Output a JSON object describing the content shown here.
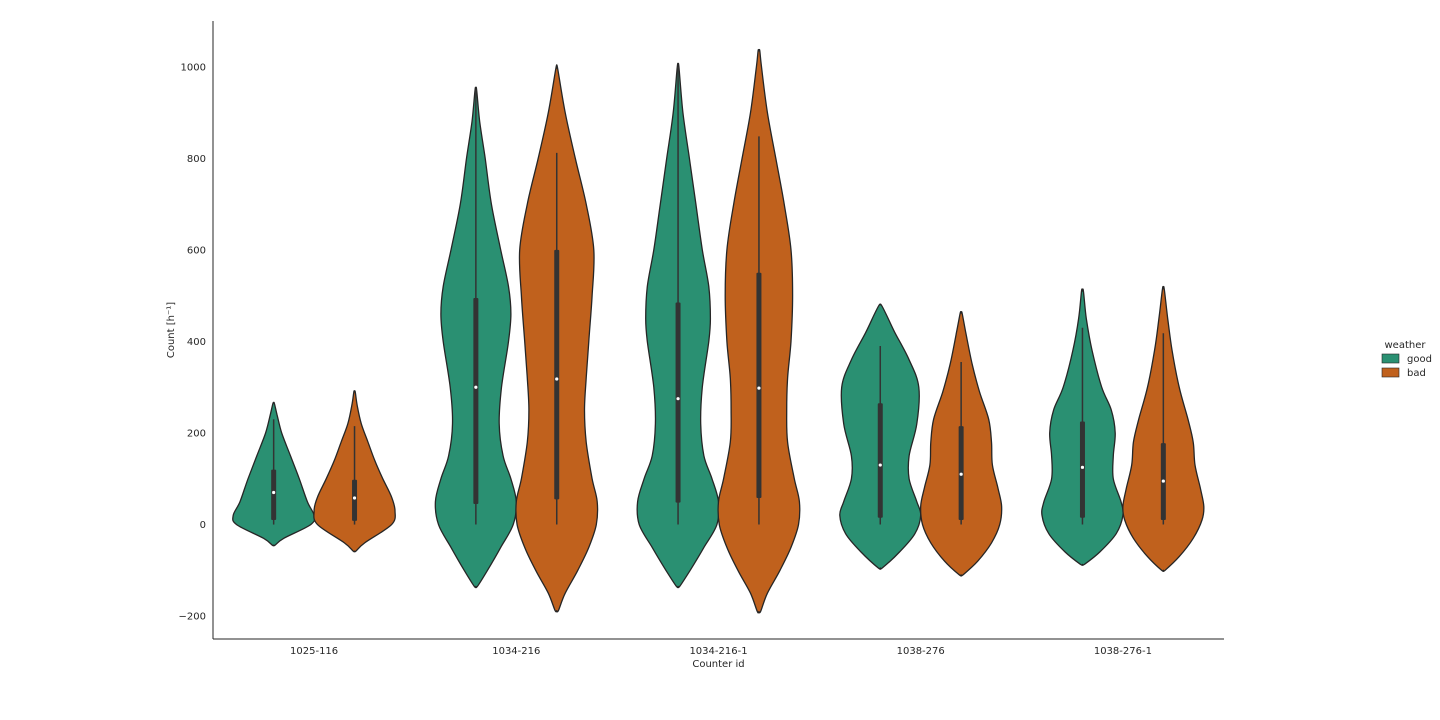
{
  "chart_data": {
    "type": "violin",
    "title": "",
    "xlabel": "Counter id",
    "ylabel": "Count [h⁻¹]",
    "ylim": [
      -250,
      1100
    ],
    "yticks": [
      -200,
      0,
      200,
      400,
      600,
      800,
      1000
    ],
    "categories": [
      "1025-116",
      "1034-216",
      "1034-216-1",
      "1038-276",
      "1038-276-1"
    ],
    "legend": {
      "title": "weather",
      "position": "right",
      "entries": [
        "good",
        "bad"
      ]
    },
    "colors": {
      "good": "#2a9072",
      "bad": "#c0611d",
      "outline": "#262626",
      "box": "#333333"
    },
    "series": [
      {
        "name": "good",
        "violins": [
          {
            "category": "1025-116",
            "min": -45,
            "max": 265,
            "median": 70,
            "q1": 10,
            "q3": 120,
            "whisker_low": 0,
            "whisker_high": 230,
            "max_width": 0.55,
            "profile": [
              [
                -45,
                0.02
              ],
              [
                -30,
                0.15
              ],
              [
                0,
                0.55
              ],
              [
                20,
                0.6
              ],
              [
                50,
                0.5
              ],
              [
                100,
                0.38
              ],
              [
                150,
                0.25
              ],
              [
                200,
                0.12
              ],
              [
                240,
                0.05
              ],
              [
                265,
                0.01
              ]
            ]
          },
          {
            "category": "1034-216",
            "min": -135,
            "max": 950,
            "median": 300,
            "q1": 45,
            "q3": 495,
            "whisker_low": 0,
            "whisker_high": 950,
            "max_width": 0.55,
            "profile": [
              [
                -135,
                0.02
              ],
              [
                -100,
                0.15
              ],
              [
                -50,
                0.32
              ],
              [
                0,
                0.48
              ],
              [
                50,
                0.52
              ],
              [
                100,
                0.45
              ],
              [
                150,
                0.35
              ],
              [
                220,
                0.3
              ],
              [
                300,
                0.33
              ],
              [
                400,
                0.42
              ],
              [
                460,
                0.45
              ],
              [
                520,
                0.42
              ],
              [
                600,
                0.32
              ],
              [
                700,
                0.2
              ],
              [
                800,
                0.12
              ],
              [
                880,
                0.05
              ],
              [
                950,
                0.01
              ]
            ]
          },
          {
            "category": "1034-216-1",
            "min": -135,
            "max": 1000,
            "median": 275,
            "q1": 48,
            "q3": 485,
            "whisker_low": 0,
            "whisker_high": 1000,
            "max_width": 0.55,
            "profile": [
              [
                -135,
                0.02
              ],
              [
                -100,
                0.15
              ],
              [
                -50,
                0.32
              ],
              [
                0,
                0.48
              ],
              [
                50,
                0.5
              ],
              [
                100,
                0.42
              ],
              [
                150,
                0.32
              ],
              [
                220,
                0.28
              ],
              [
                300,
                0.3
              ],
              [
                400,
                0.38
              ],
              [
                450,
                0.4
              ],
              [
                520,
                0.38
              ],
              [
                600,
                0.3
              ],
              [
                700,
                0.22
              ],
              [
                800,
                0.14
              ],
              [
                900,
                0.06
              ],
              [
                1000,
                0.01
              ]
            ]
          },
          {
            "category": "1038-276",
            "min": -95,
            "max": 480,
            "median": 130,
            "q1": 15,
            "q3": 265,
            "whisker_low": 0,
            "whisker_high": 390,
            "max_width": 0.45,
            "profile": [
              [
                -95,
                0.02
              ],
              [
                -60,
                0.2
              ],
              [
                -20,
                0.36
              ],
              [
                20,
                0.42
              ],
              [
                50,
                0.38
              ],
              [
                100,
                0.3
              ],
              [
                150,
                0.3
              ],
              [
                220,
                0.38
              ],
              [
                300,
                0.4
              ],
              [
                360,
                0.3
              ],
              [
                420,
                0.15
              ],
              [
                460,
                0.06
              ],
              [
                480,
                0.01
              ]
            ]
          },
          {
            "category": "1038-276-1",
            "min": -87,
            "max": 510,
            "median": 125,
            "q1": 15,
            "q3": 225,
            "whisker_low": 0,
            "whisker_high": 430,
            "max_width": 0.45,
            "profile": [
              [
                -87,
                0.02
              ],
              [
                -60,
                0.18
              ],
              [
                -20,
                0.35
              ],
              [
                20,
                0.42
              ],
              [
                50,
                0.4
              ],
              [
                100,
                0.32
              ],
              [
                150,
                0.32
              ],
              [
                200,
                0.34
              ],
              [
                250,
                0.3
              ],
              [
                300,
                0.2
              ],
              [
                380,
                0.1
              ],
              [
                450,
                0.04
              ],
              [
                510,
                0.01
              ]
            ]
          }
        ]
      },
      {
        "name": "bad",
        "violins": [
          {
            "category": "1025-116",
            "min": -58,
            "max": 290,
            "median": 58,
            "q1": 8,
            "q3": 98,
            "whisker_low": 0,
            "whisker_high": 215,
            "max_width": 0.55,
            "profile": [
              [
                -58,
                0.02
              ],
              [
                -40,
                0.15
              ],
              [
                0,
                0.55
              ],
              [
                30,
                0.6
              ],
              [
                60,
                0.55
              ],
              [
                100,
                0.42
              ],
              [
                140,
                0.3
              ],
              [
                180,
                0.2
              ],
              [
                220,
                0.1
              ],
              [
                260,
                0.04
              ],
              [
                290,
                0.01
              ]
            ]
          },
          {
            "category": "1034-216",
            "min": -188,
            "max": 997,
            "median": 318,
            "q1": 55,
            "q3": 600,
            "whisker_low": 0,
            "whisker_high": 812,
            "max_width": 0.55,
            "profile": [
              [
                -188,
                0.02
              ],
              [
                -150,
                0.1
              ],
              [
                -100,
                0.25
              ],
              [
                -50,
                0.38
              ],
              [
                0,
                0.47
              ],
              [
                50,
                0.48
              ],
              [
                100,
                0.42
              ],
              [
                180,
                0.35
              ],
              [
                250,
                0.33
              ],
              [
                320,
                0.35
              ],
              [
                400,
                0.38
              ],
              [
                500,
                0.42
              ],
              [
                600,
                0.44
              ],
              [
                700,
                0.35
              ],
              [
                800,
                0.22
              ],
              [
                900,
                0.1
              ],
              [
                997,
                0.01
              ]
            ]
          },
          {
            "category": "1034-216-1",
            "min": -190,
            "max": 1035,
            "median": 298,
            "q1": 58,
            "q3": 550,
            "whisker_low": 0,
            "whisker_high": 848,
            "max_width": 0.55,
            "profile": [
              [
                -190,
                0.02
              ],
              [
                -150,
                0.1
              ],
              [
                -100,
                0.25
              ],
              [
                -50,
                0.38
              ],
              [
                0,
                0.47
              ],
              [
                50,
                0.48
              ],
              [
                100,
                0.42
              ],
              [
                180,
                0.34
              ],
              [
                250,
                0.33
              ],
              [
                320,
                0.34
              ],
              [
                400,
                0.38
              ],
              [
                500,
                0.4
              ],
              [
                600,
                0.38
              ],
              [
                700,
                0.3
              ],
              [
                800,
                0.2
              ],
              [
                900,
                0.1
              ],
              [
                1000,
                0.03
              ],
              [
                1035,
                0.01
              ]
            ]
          },
          {
            "category": "1038-276",
            "min": -110,
            "max": 462,
            "median": 110,
            "q1": 10,
            "q3": 215,
            "whisker_low": 0,
            "whisker_high": 355,
            "max_width": 0.45,
            "profile": [
              [
                -110,
                0.02
              ],
              [
                -80,
                0.18
              ],
              [
                -40,
                0.33
              ],
              [
                0,
                0.42
              ],
              [
                40,
                0.44
              ],
              [
                80,
                0.4
              ],
              [
                130,
                0.34
              ],
              [
                180,
                0.33
              ],
              [
                230,
                0.3
              ],
              [
                290,
                0.2
              ],
              [
                350,
                0.12
              ],
              [
                420,
                0.05
              ],
              [
                462,
                0.01
              ]
            ]
          },
          {
            "category": "1038-276-1",
            "min": -100,
            "max": 515,
            "median": 95,
            "q1": 10,
            "q3": 178,
            "whisker_low": 0,
            "whisker_high": 418,
            "max_width": 0.45,
            "profile": [
              [
                -100,
                0.02
              ],
              [
                -70,
                0.18
              ],
              [
                -30,
                0.34
              ],
              [
                10,
                0.44
              ],
              [
                40,
                0.46
              ],
              [
                80,
                0.42
              ],
              [
                130,
                0.36
              ],
              [
                180,
                0.34
              ],
              [
                230,
                0.28
              ],
              [
                300,
                0.18
              ],
              [
                380,
                0.1
              ],
              [
                450,
                0.05
              ],
              [
                515,
                0.01
              ]
            ]
          }
        ]
      }
    ]
  }
}
